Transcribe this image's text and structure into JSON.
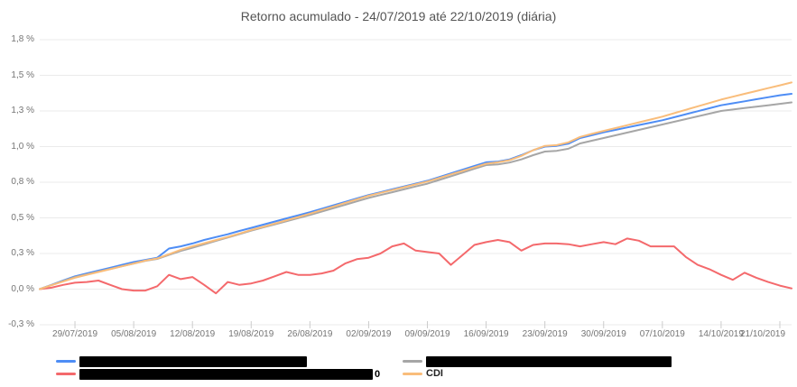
{
  "title": "Retorno acumulado - 24/07/2019 até 22/10/2019 (diária)",
  "legend": {
    "cdi_label": "CDI",
    "redacted_leak_char": "0"
  },
  "chart_data": {
    "type": "line",
    "title": "Retorno acumulado - 24/07/2019 até 22/10/2019 (diária)",
    "grid": true,
    "legend_position": "bottom",
    "ylim": [
      -0.25,
      1.75
    ],
    "y_tick_labels": [
      "1,8 %",
      "1,5 %",
      "1,3 %",
      "1,0 %",
      "0,8 %",
      "0,5 %",
      "0,3 %",
      "0,0 %",
      "-0,3 %"
    ],
    "y_tick_values": [
      1.75,
      1.5,
      1.25,
      1.0,
      0.75,
      0.5,
      0.25,
      0.0,
      -0.25
    ],
    "x_tick_labels": [
      "29/07/2019",
      "05/08/2019",
      "12/08/2019",
      "19/08/2019",
      "26/08/2019",
      "02/09/2019",
      "09/09/2019",
      "16/09/2019",
      "23/09/2019",
      "30/09/2019",
      "07/10/2019",
      "14/10/2019",
      "21/10/2019"
    ],
    "x_tick_indices": [
      3,
      8,
      13,
      18,
      23,
      28,
      33,
      38,
      43,
      48,
      53,
      58,
      63
    ],
    "x_range_label": "24/07/2019 até 22/10/2019 (diária)",
    "series": [
      {
        "name": "",
        "redacted": true,
        "color": "#4E8DF5",
        "values": [
          0.0,
          0.03,
          0.06,
          0.09,
          0.11,
          0.13,
          0.15,
          0.17,
          0.19,
          0.205,
          0.22,
          0.285,
          0.3,
          0.32,
          0.345,
          0.365,
          0.385,
          0.408,
          0.43,
          0.452,
          0.474,
          0.496,
          0.518,
          0.54,
          0.564,
          0.588,
          0.612,
          0.636,
          0.66,
          0.68,
          0.7,
          0.72,
          0.74,
          0.76,
          0.786,
          0.812,
          0.838,
          0.864,
          0.89,
          0.895,
          0.91,
          0.94,
          0.975,
          1.0,
          1.005,
          1.02,
          1.06,
          1.08,
          1.1,
          1.117,
          1.134,
          1.151,
          1.168,
          1.185,
          1.206,
          1.227,
          1.248,
          1.269,
          1.29,
          1.304,
          1.318,
          1.332,
          1.346,
          1.36,
          1.37
        ]
      },
      {
        "name": "",
        "redacted": true,
        "color": "#F4696C",
        "values": [
          0.0,
          0.01,
          0.03,
          0.045,
          0.05,
          0.06,
          0.03,
          0.0,
          -0.01,
          -0.01,
          0.02,
          0.1,
          0.07,
          0.085,
          0.03,
          -0.03,
          0.05,
          0.03,
          0.04,
          0.06,
          0.09,
          0.12,
          0.1,
          0.1,
          0.11,
          0.13,
          0.18,
          0.21,
          0.22,
          0.25,
          0.3,
          0.32,
          0.27,
          0.26,
          0.25,
          0.17,
          0.24,
          0.31,
          0.33,
          0.345,
          0.33,
          0.27,
          0.31,
          0.32,
          0.32,
          0.315,
          0.3,
          0.315,
          0.33,
          0.315,
          0.355,
          0.34,
          0.3,
          0.3,
          0.3,
          0.225,
          0.17,
          0.14,
          0.1,
          0.065,
          0.115,
          0.08,
          0.05,
          0.025,
          0.005
        ]
      },
      {
        "name": "",
        "redacted": true,
        "color": "#A6A6A6",
        "values": [
          0.0,
          0.028,
          0.057,
          0.085,
          0.104,
          0.123,
          0.142,
          0.161,
          0.18,
          0.198,
          0.212,
          0.24,
          0.268,
          0.29,
          0.314,
          0.338,
          0.362,
          0.386,
          0.41,
          0.432,
          0.454,
          0.476,
          0.498,
          0.52,
          0.544,
          0.568,
          0.592,
          0.616,
          0.64,
          0.66,
          0.68,
          0.7,
          0.72,
          0.74,
          0.766,
          0.792,
          0.818,
          0.844,
          0.87,
          0.875,
          0.888,
          0.91,
          0.94,
          0.965,
          0.97,
          0.985,
          1.022,
          1.041,
          1.06,
          1.079,
          1.098,
          1.117,
          1.136,
          1.155,
          1.174,
          1.193,
          1.212,
          1.231,
          1.25,
          1.26,
          1.27,
          1.28,
          1.29,
          1.3,
          1.31
        ]
      },
      {
        "name": "CDI",
        "redacted": false,
        "color": "#F9BD7B",
        "values": [
          0.0,
          0.027,
          0.053,
          0.08,
          0.1,
          0.12,
          0.14,
          0.16,
          0.18,
          0.2,
          0.215,
          0.245,
          0.276,
          0.3,
          0.322,
          0.344,
          0.366,
          0.39,
          0.415,
          0.437,
          0.46,
          0.483,
          0.506,
          0.53,
          0.555,
          0.58,
          0.605,
          0.63,
          0.655,
          0.675,
          0.695,
          0.715,
          0.735,
          0.755,
          0.78,
          0.805,
          0.83,
          0.855,
          0.88,
          0.89,
          0.905,
          0.935,
          0.975,
          1.005,
          1.01,
          1.03,
          1.068,
          1.089,
          1.11,
          1.13,
          1.15,
          1.17,
          1.19,
          1.21,
          1.234,
          1.258,
          1.282,
          1.306,
          1.33,
          1.35,
          1.37,
          1.39,
          1.41,
          1.43,
          1.45
        ]
      }
    ],
    "style": {
      "gridline_color": "#EBEBEB",
      "tick_color": "#CCCCCC",
      "axis_label_color": "#757575",
      "title_color": "#545454"
    }
  }
}
